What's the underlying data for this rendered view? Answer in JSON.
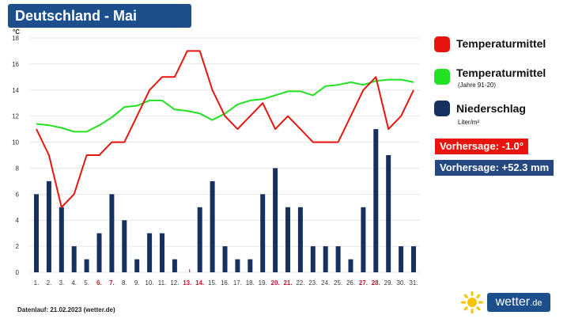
{
  "header": {
    "title": "Deutschland - Mai"
  },
  "legend": {
    "items": [
      {
        "label": "Temperaturmittel",
        "color": "#e8150f"
      },
      {
        "label": "Temperaturmittel",
        "sub": "(Jahre 91-20)",
        "color": "#22e022"
      },
      {
        "label": "Niederschlag",
        "sub": "Liter/m²",
        "color": "#16305f"
      }
    ]
  },
  "forecast": {
    "temperature": "Vorhersage: -1.0°",
    "temperature_color": "#e8150f",
    "precipitation": "Vorhersage: +52.3 mm",
    "precipitation_color": "#24487f"
  },
  "footer": {
    "text": "Datenlauf: 21.02.2023 (wetter.de)"
  },
  "logo": {
    "name": "wetter",
    "tld": ".de",
    "icon": "sun-icon"
  },
  "chart_data": {
    "type": "bar",
    "y_unit": "°C",
    "ylim": [
      0,
      18
    ],
    "yticks": [
      0,
      2,
      4,
      6,
      8,
      10,
      12,
      14,
      16,
      18
    ],
    "grid": true,
    "categories": [
      "1.",
      "2.",
      "3.",
      "4.",
      "5.",
      "6.",
      "7.",
      "8.",
      "9.",
      "10.",
      "11.",
      "12.",
      "13.",
      "14.",
      "15.",
      "16.",
      "17.",
      "18.",
      "19.",
      "20.",
      "21.",
      "22.",
      "23.",
      "24.",
      "25.",
      "26.",
      "27.",
      "28.",
      "29.",
      "30.",
      "31."
    ],
    "highlighted_days": [
      "6.",
      "7.",
      "13.",
      "14.",
      "20.",
      "21.",
      "27.",
      "28."
    ],
    "highlight_color": "#c8102e",
    "series": [
      {
        "name": "Temperaturmittel",
        "kind": "line",
        "color": "#e8150f",
        "values": [
          11,
          9,
          5,
          6,
          9,
          9,
          10,
          10,
          12,
          14,
          15,
          15,
          17,
          17,
          14,
          12,
          11,
          12,
          13,
          11,
          12,
          11,
          10,
          10,
          10,
          12,
          14,
          15,
          11,
          12,
          14
        ]
      },
      {
        "name": "Temperaturmittel (Jahre 91-20)",
        "kind": "line",
        "color": "#22e022",
        "values": [
          11.4,
          11.3,
          11.1,
          10.8,
          10.8,
          11.3,
          11.9,
          12.7,
          12.8,
          13.2,
          13.2,
          12.5,
          12.4,
          12.2,
          11.7,
          12.2,
          12.9,
          13.2,
          13.3,
          13.6,
          13.9,
          13.9,
          13.6,
          14.3,
          14.4,
          14.6,
          14.4,
          14.7,
          14.8,
          14.8,
          14.6
        ]
      },
      {
        "name": "Niederschlag",
        "kind": "bar",
        "color": "#16305f",
        "values": [
          6,
          7,
          5,
          2,
          1,
          3,
          6,
          4,
          1,
          3,
          3,
          1,
          0,
          5,
          7,
          2,
          1,
          1,
          6,
          8,
          5,
          5,
          2,
          2,
          2,
          1,
          5,
          11,
          9,
          2,
          2
        ]
      }
    ]
  }
}
